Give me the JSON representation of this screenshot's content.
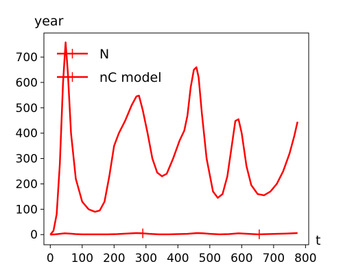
{
  "chart_data": {
    "type": "line",
    "xlabel": "t",
    "ylabel": "year",
    "xlim": [
      -20,
      810
    ],
    "ylim": [
      -40,
      795
    ],
    "xticks": [
      0,
      100,
      200,
      300,
      400,
      500,
      600,
      700,
      800
    ],
    "yticks": [
      0,
      100,
      200,
      300,
      400,
      500,
      600,
      700
    ],
    "legend_position": "top-left",
    "grid": false,
    "series": [
      {
        "name": "N",
        "color": "#ff0000",
        "x": [
          0,
          10,
          20,
          30,
          40,
          48,
          55,
          65,
          80,
          100,
          120,
          140,
          155,
          170,
          185,
          200,
          215,
          235,
          255,
          270,
          278,
          290,
          305,
          320,
          335,
          350,
          365,
          385,
          405,
          420,
          430,
          440,
          450,
          458,
          465,
          475,
          490,
          510,
          525,
          540,
          555,
          570,
          580,
          590,
          600,
          615,
          630,
          650,
          670,
          690,
          710,
          730,
          750,
          765,
          775
        ],
        "y": [
          0,
          15,
          80,
          280,
          600,
          758,
          640,
          400,
          220,
          130,
          100,
          90,
          95,
          130,
          230,
          350,
          400,
          450,
          510,
          545,
          548,
          490,
          400,
          300,
          245,
          230,
          240,
          300,
          370,
          410,
          470,
          580,
          650,
          660,
          620,
          480,
          300,
          170,
          145,
          160,
          230,
          360,
          448,
          455,
          400,
          270,
          195,
          160,
          155,
          170,
          200,
          250,
          320,
          390,
          445
        ]
      },
      {
        "name": "nC model",
        "color": "#ff0000",
        "x": [
          0,
          15,
          30,
          45,
          60,
          80,
          100,
          120,
          150,
          180,
          210,
          240,
          270,
          290,
          310,
          340,
          370,
          400,
          430,
          460,
          480,
          500,
          530,
          560,
          590,
          620,
          650,
          680,
          710,
          740,
          775
        ],
        "y": [
          0,
          1,
          3,
          5,
          4,
          2,
          1,
          1,
          1,
          1,
          2,
          4,
          6,
          5,
          3,
          1,
          1,
          2,
          3,
          6,
          5,
          3,
          1,
          2,
          5,
          3,
          1,
          2,
          3,
          4,
          6
        ],
        "markers_x": [
          290,
          655
        ]
      }
    ]
  }
}
